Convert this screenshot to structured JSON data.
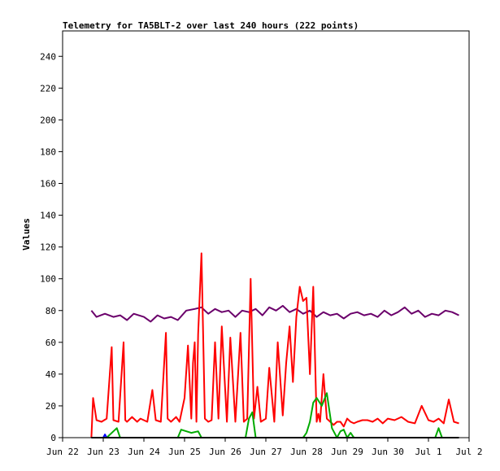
{
  "chart_data": {
    "type": "line",
    "title": "Telemetry for TA5BLT-2 over last 240 hours (222 points)",
    "xlabel": "",
    "ylabel": "Values",
    "ylim": [
      0,
      256
    ],
    "xlim": [
      "2022-06-22T00:00",
      "2022-07-02T00:00"
    ],
    "y_ticks": [
      0,
      20,
      40,
      60,
      80,
      100,
      120,
      140,
      160,
      180,
      200,
      220,
      240
    ],
    "x_ticks": [
      {
        "date": "2022-06-22T00:00",
        "label": "Jun 22"
      },
      {
        "date": "2022-06-23T00:00",
        "label": "Jun 23"
      },
      {
        "date": "2022-06-24T00:00",
        "label": "Jun 24"
      },
      {
        "date": "2022-06-25T00:00",
        "label": "Jun 25"
      },
      {
        "date": "2022-06-26T00:00",
        "label": "Jun 26"
      },
      {
        "date": "2022-06-27T00:00",
        "label": "Jun 27"
      },
      {
        "date": "2022-06-28T00:00",
        "label": "Jun 28"
      },
      {
        "date": "2022-06-29T00:00",
        "label": "Jun 29"
      },
      {
        "date": "2022-06-30T00:00",
        "label": "Jun 30"
      },
      {
        "date": "2022-07-01T00:00",
        "label": "Jul 1"
      },
      {
        "date": "2022-07-02T00:00",
        "label": "Jul 2"
      }
    ],
    "grid": false,
    "series": [
      {
        "color": "#6b006b",
        "x": [
          "2022-06-22T17:00",
          "2022-06-22T20:00",
          "2022-06-23T01:00",
          "2022-06-23T06:00",
          "2022-06-23T10:00",
          "2022-06-23T14:00",
          "2022-06-23T18:00",
          "2022-06-24T00:00",
          "2022-06-24T04:00",
          "2022-06-24T08:00",
          "2022-06-24T12:00",
          "2022-06-24T16:00",
          "2022-06-24T20:00",
          "2022-06-25T01:00",
          "2022-06-25T06:00",
          "2022-06-25T10:00",
          "2022-06-25T14:00",
          "2022-06-25T18:00",
          "2022-06-25T22:00",
          "2022-06-26T02:00",
          "2022-06-26T06:00",
          "2022-06-26T10:00",
          "2022-06-26T14:00",
          "2022-06-26T18:00",
          "2022-06-26T22:00",
          "2022-06-27T02:00",
          "2022-06-27T06:00",
          "2022-06-27T10:00",
          "2022-06-27T14:00",
          "2022-06-27T18:00",
          "2022-06-27T22:00",
          "2022-06-28T02:00",
          "2022-06-28T06:00",
          "2022-06-28T10:00",
          "2022-06-28T14:00",
          "2022-06-28T18:00",
          "2022-06-28T22:00",
          "2022-06-29T02:00",
          "2022-06-29T06:00",
          "2022-06-29T10:00",
          "2022-06-29T14:00",
          "2022-06-29T18:00",
          "2022-06-29T22:00",
          "2022-06-30T02:00",
          "2022-06-30T06:00",
          "2022-06-30T10:00",
          "2022-06-30T14:00",
          "2022-06-30T18:00",
          "2022-06-30T22:00",
          "2022-07-01T02:00",
          "2022-07-01T06:00",
          "2022-07-01T10:00",
          "2022-07-01T14:00",
          "2022-07-01T18:00"
        ],
        "values": [
          80,
          76,
          78,
          76,
          77,
          74,
          78,
          76,
          73,
          77,
          75,
          76,
          74,
          80,
          81,
          82,
          78,
          81,
          79,
          80,
          76,
          80,
          79,
          81,
          77,
          82,
          80,
          83,
          79,
          81,
          78,
          80,
          76,
          79,
          77,
          78,
          75,
          78,
          79,
          77,
          78,
          76,
          80,
          77,
          79,
          82,
          78,
          80,
          76,
          78,
          77,
          80,
          79,
          77
        ]
      },
      {
        "color": "#ff0000",
        "x": [
          "2022-06-22T17:00",
          "2022-06-22T18:00",
          "2022-06-22T20:00",
          "2022-06-22T23:00",
          "2022-06-23T02:00",
          "2022-06-23T05:00",
          "2022-06-23T06:00",
          "2022-06-23T09:00",
          "2022-06-23T12:00",
          "2022-06-23T13:00",
          "2022-06-23T14:00",
          "2022-06-23T17:00",
          "2022-06-23T20:00",
          "2022-06-23T22:00",
          "2022-06-24T02:00",
          "2022-06-24T05:00",
          "2022-06-24T07:00",
          "2022-06-24T10:00",
          "2022-06-24T13:00",
          "2022-06-24T14:00",
          "2022-06-24T16:00",
          "2022-06-24T19:00",
          "2022-06-24T21:00",
          "2022-06-25T00:00",
          "2022-06-25T02:00",
          "2022-06-25T04:00",
          "2022-06-25T05:00",
          "2022-06-25T06:00",
          "2022-06-25T07:00",
          "2022-06-25T08:00",
          "2022-06-25T10:00",
          "2022-06-25T12:00",
          "2022-06-25T14:00",
          "2022-06-25T16:00",
          "2022-06-25T18:00",
          "2022-06-25T20:00",
          "2022-06-25T22:00",
          "2022-06-26T01:00",
          "2022-06-26T03:00",
          "2022-06-26T06:00",
          "2022-06-26T09:00",
          "2022-06-26T11:00",
          "2022-06-26T13:00",
          "2022-06-26T15:00",
          "2022-06-26T17:00",
          "2022-06-26T19:00",
          "2022-06-26T21:00",
          "2022-06-27T00:00",
          "2022-06-27T02:00",
          "2022-06-27T05:00",
          "2022-06-27T07:00",
          "2022-06-27T10:00",
          "2022-06-27T12:00",
          "2022-06-27T14:00",
          "2022-06-27T16:00",
          "2022-06-27T18:00",
          "2022-06-27T20:00",
          "2022-06-27T22:00",
          "2022-06-28T00:00",
          "2022-06-28T02:00",
          "2022-06-28T04:00",
          "2022-06-28T06:00",
          "2022-06-28T07:00",
          "2022-06-28T08:00",
          "2022-06-28T10:00",
          "2022-06-28T12:00",
          "2022-06-28T14:00",
          "2022-06-28T16:00",
          "2022-06-28T18:00",
          "2022-06-28T20:00",
          "2022-06-28T22:00",
          "2022-06-29T00:00",
          "2022-06-29T02:00",
          "2022-06-29T04:00",
          "2022-06-29T06:00",
          "2022-06-29T09:00",
          "2022-06-29T12:00",
          "2022-06-29T15:00",
          "2022-06-29T18:00",
          "2022-06-29T21:00",
          "2022-06-30T00:00",
          "2022-06-30T04:00",
          "2022-06-30T08:00",
          "2022-06-30T12:00",
          "2022-06-30T16:00",
          "2022-06-30T20:00",
          "2022-07-01T00:00",
          "2022-07-01T03:00",
          "2022-07-01T06:00",
          "2022-07-01T09:00",
          "2022-07-01T12:00",
          "2022-07-01T15:00",
          "2022-07-01T18:00"
        ],
        "values": [
          0,
          25,
          11,
          10,
          12,
          57,
          11,
          10,
          60,
          11,
          10,
          13,
          10,
          12,
          10,
          30,
          11,
          10,
          66,
          12,
          10,
          13,
          10,
          25,
          58,
          12,
          47,
          60,
          10,
          65,
          116,
          12,
          10,
          11,
          60,
          12,
          70,
          10,
          63,
          10,
          66,
          10,
          12,
          100,
          12,
          32,
          10,
          12,
          44,
          10,
          60,
          14,
          47,
          70,
          35,
          76,
          95,
          86,
          88,
          40,
          95,
          10,
          15,
          10,
          40,
          12,
          10,
          8,
          10,
          10,
          7,
          12,
          10,
          9,
          10,
          11,
          11,
          10,
          12,
          9,
          12,
          11,
          13,
          10,
          9,
          20,
          11,
          10,
          12,
          9,
          24,
          10,
          9
        ]
      },
      {
        "color": "#00aa00",
        "x": [
          "2022-06-22T17:00",
          "2022-06-23T02:00",
          "2022-06-23T06:00",
          "2022-06-23T08:00",
          "2022-06-23T10:00",
          "2022-06-24T20:00",
          "2022-06-24T22:00",
          "2022-06-25T04:00",
          "2022-06-25T08:00",
          "2022-06-25T10:00",
          "2022-06-26T12:00",
          "2022-06-26T14:00",
          "2022-06-26T16:00",
          "2022-06-26T18:00",
          "2022-06-27T22:00",
          "2022-06-28T00:00",
          "2022-06-28T02:00",
          "2022-06-28T04:00",
          "2022-06-28T06:00",
          "2022-06-28T09:00",
          "2022-06-28T12:00",
          "2022-06-28T15:00",
          "2022-06-28T18:00",
          "2022-06-28T20:00",
          "2022-06-28T22:00",
          "2022-06-29T00:00",
          "2022-06-29T02:00",
          "2022-06-29T04:00",
          "2022-07-01T04:00",
          "2022-07-01T06:00",
          "2022-07-01T08:00",
          "2022-07-01T18:00"
        ],
        "values": [
          0,
          0,
          4,
          6,
          0,
          0,
          5,
          3,
          4,
          0,
          0,
          12,
          16,
          0,
          0,
          3,
          10,
          22,
          25,
          20,
          28,
          6,
          0,
          4,
          5,
          0,
          3,
          0,
          0,
          6,
          0,
          0
        ]
      },
      {
        "color": "#0000ff",
        "x": [
          "2022-06-22T17:00",
          "2022-06-23T00:00",
          "2022-06-23T01:00",
          "2022-06-23T02:00",
          "2022-07-01T18:00"
        ],
        "values": [
          0,
          0,
          2,
          0,
          0
        ]
      },
      {
        "color": "#000000",
        "x": [
          "2022-06-22T17:00",
          "2022-07-01T18:00"
        ],
        "values": [
          0,
          0
        ]
      }
    ]
  }
}
